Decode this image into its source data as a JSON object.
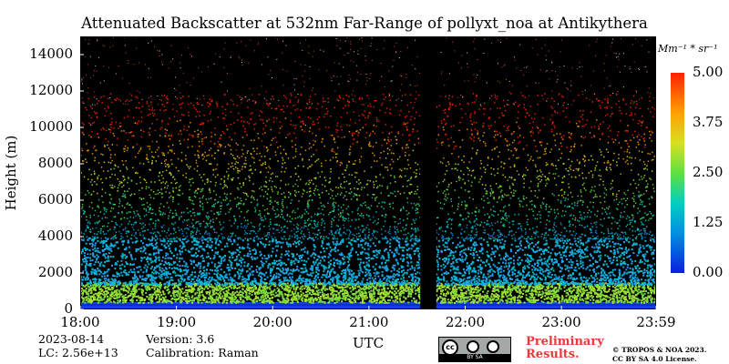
{
  "chart_data": {
    "type": "heatmap",
    "title": "Attenuated Backscatter at 532nm Far-Range of pollyxt_noa at Antikythera",
    "ylabel": "Height (m)",
    "xlabel": "UTC",
    "x_ticks": [
      "18:00",
      "19:00",
      "20:00",
      "21:00",
      "22:00",
      "23:00",
      "23:59"
    ],
    "x_range": [
      "18:00",
      "23:59"
    ],
    "y_ticks": [
      "0",
      "2000",
      "4000",
      "6000",
      "8000",
      "10000",
      "12000",
      "14000"
    ],
    "y_range": [
      0,
      15000
    ],
    "colorbar": {
      "ticks": [
        "0.00",
        "1.25",
        "2.50",
        "3.75",
        "5.00"
      ],
      "range": [
        0.0,
        5.0
      ],
      "unit": "Mm⁻¹ * sr⁻¹",
      "colors": [
        "#0a1fe0",
        "#0090e0",
        "#00d0c0",
        "#60e040",
        "#d8e020",
        "#ffa000",
        "#ff2000"
      ]
    },
    "data_gap": [
      "21:32",
      "21:42"
    ],
    "background_color": "#000000"
  },
  "info": {
    "date": "2023-08-14",
    "version": "Version: 3.6",
    "lc": "LC: 2.56e+13",
    "calibration": "Calibration: Raman"
  },
  "footer": {
    "license_badge_text": "BY SA",
    "license_cc": "cc",
    "preliminary_line1": "Preliminary",
    "preliminary_line2": "Results.",
    "copyright_line1": "© TROPOS & NOA 2023.",
    "copyright_line2": "CC BY SA 4.0 License."
  }
}
